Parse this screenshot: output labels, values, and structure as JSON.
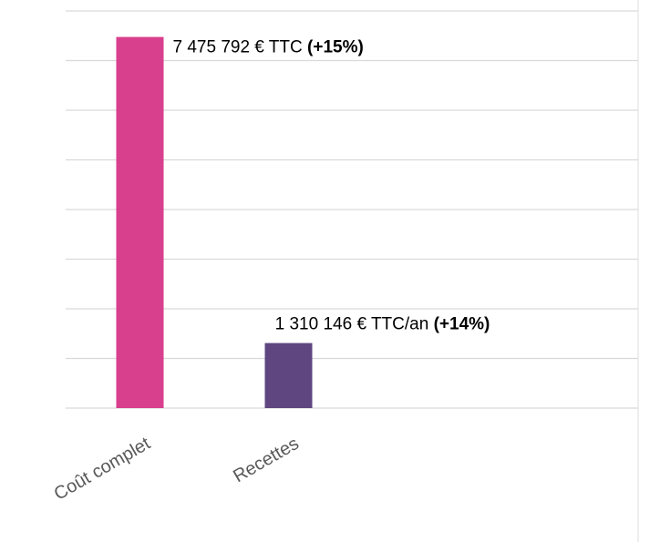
{
  "chart_data": {
    "type": "bar",
    "categories": [
      "Coût complet",
      "Recettes"
    ],
    "values": [
      7475792,
      1310146
    ],
    "value_labels": [
      "7 475 792 € TTC",
      "1 310 146 € TTC/an"
    ],
    "value_changes": [
      "(+15%)",
      "(+14%)"
    ],
    "colors": [
      "#d83f8d",
      "#5f4680"
    ],
    "ylim": [
      0,
      8000000
    ],
    "yticks": [
      0,
      1000000,
      2000000,
      3000000,
      4000000,
      5000000,
      6000000,
      7000000,
      8000000
    ],
    "grid": true
  }
}
